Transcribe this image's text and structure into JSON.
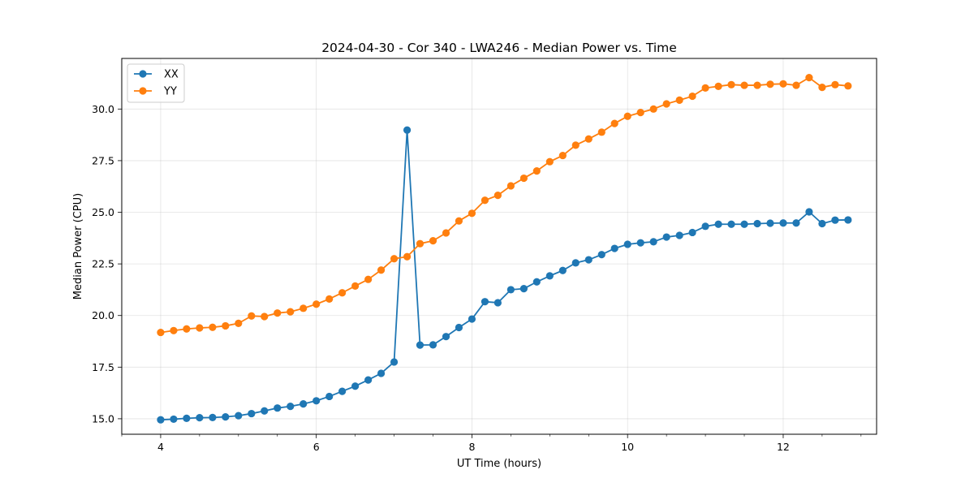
{
  "chart_data": {
    "type": "line",
    "title": "2024-04-30 - Cor 340 - LWA246 - Median Power vs. Time",
    "xlabel": "UT Time (hours)",
    "ylabel": "Median Power (CPU)",
    "xlim": [
      3.5,
      13.2
    ],
    "ylim": [
      14.25,
      32.45
    ],
    "xticks": [
      4,
      6,
      8,
      10,
      12
    ],
    "xtick_labels": [
      "4",
      "6",
      "8",
      "10",
      "12"
    ],
    "yticks": [
      15.0,
      17.5,
      20.0,
      22.5,
      25.0,
      27.5,
      30.0
    ],
    "ytick_labels": [
      "15.0",
      "17.5",
      "20.0",
      "22.5",
      "25.0",
      "27.5",
      "30.0"
    ],
    "x_minor_step": 0.5,
    "grid": true,
    "legend_location": "upper-left",
    "x": [
      4.0,
      4.167,
      4.333,
      4.5,
      4.667,
      4.833,
      5.0,
      5.167,
      5.333,
      5.5,
      5.667,
      5.833,
      6.0,
      6.167,
      6.333,
      6.5,
      6.667,
      6.833,
      7.0,
      7.167,
      7.333,
      7.5,
      7.667,
      7.833,
      8.0,
      8.167,
      8.333,
      8.5,
      8.667,
      8.833,
      9.0,
      9.167,
      9.333,
      9.5,
      9.667,
      9.833,
      10.0,
      10.167,
      10.333,
      10.5,
      10.667,
      10.833,
      11.0,
      11.167,
      11.333,
      11.5,
      11.667,
      11.833,
      12.0,
      12.167,
      12.333,
      12.5,
      12.667,
      12.833
    ],
    "series": [
      {
        "name": "XX",
        "color": "#1f77b4",
        "values": [
          14.95,
          14.98,
          15.02,
          15.05,
          15.06,
          15.09,
          15.15,
          15.25,
          15.38,
          15.52,
          15.6,
          15.72,
          15.87,
          16.08,
          16.33,
          16.58,
          16.88,
          17.2,
          17.75,
          28.98,
          18.57,
          18.58,
          18.98,
          19.42,
          19.83,
          20.67,
          20.62,
          21.25,
          21.3,
          21.63,
          21.92,
          22.18,
          22.55,
          22.7,
          22.95,
          23.25,
          23.45,
          23.52,
          23.57,
          23.8,
          23.88,
          24.02,
          24.32,
          24.42,
          24.42,
          24.42,
          24.45,
          24.47,
          24.48,
          24.48,
          25.02,
          24.45,
          24.62,
          24.63
        ]
      },
      {
        "name": "YY",
        "color": "#ff7f0e",
        "values": [
          19.18,
          19.27,
          19.35,
          19.4,
          19.43,
          19.5,
          19.62,
          19.98,
          19.95,
          20.12,
          20.18,
          20.35,
          20.55,
          20.8,
          21.1,
          21.43,
          21.75,
          22.2,
          22.75,
          22.85,
          23.48,
          23.62,
          24.0,
          24.58,
          24.95,
          25.58,
          25.82,
          26.28,
          26.65,
          27.0,
          27.45,
          27.75,
          28.25,
          28.55,
          28.88,
          29.3,
          29.65,
          29.83,
          30.0,
          30.25,
          30.43,
          30.62,
          31.02,
          31.1,
          31.18,
          31.15,
          31.15,
          31.2,
          31.22,
          31.15,
          31.52,
          31.05,
          31.18,
          31.12
        ]
      }
    ]
  }
}
